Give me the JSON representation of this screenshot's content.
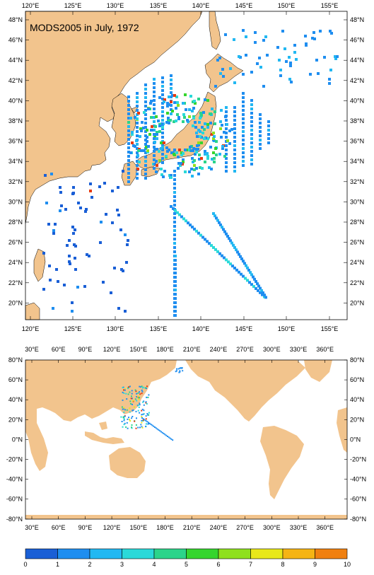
{
  "top_map": {
    "title": "MODS2005 in July, 1972",
    "x_ticks": [
      "120°E",
      "125°E",
      "130°E",
      "135°E",
      "140°E",
      "145°E",
      "150°E",
      "155°E"
    ],
    "y_ticks": [
      "48°N",
      "46°N",
      "44°N",
      "42°N",
      "40°N",
      "38°N",
      "36°N",
      "34°N",
      "32°N",
      "30°N",
      "28°N",
      "26°N",
      "24°N",
      "22°N",
      "20°N"
    ],
    "lon_range": [
      119.5,
      157.5
    ],
    "lat_range": [
      18.7,
      49.8
    ]
  },
  "bottom_map": {
    "x_ticks": [
      "30°E",
      "60°E",
      "90°E",
      "120°E",
      "150°E",
      "180°E",
      "210°E",
      "240°E",
      "270°E",
      "300°E",
      "330°E",
      "360°E"
    ],
    "y_ticks": [
      "80°N",
      "60°N",
      "40°N",
      "20°N",
      "0°N",
      "-20°N",
      "-40°N",
      "-60°N",
      "-80°N"
    ],
    "lon_range": [
      20,
      375
    ],
    "lat_range": [
      -80,
      80
    ]
  },
  "colorbar": {
    "ticks": [
      "0",
      "1",
      "2",
      "3",
      "4",
      "5",
      "6",
      "7",
      "8",
      "9",
      "10"
    ],
    "colors": [
      "#1a5fd6",
      "#1f8ef0",
      "#22b8f2",
      "#2ad9d9",
      "#2bd48a",
      "#35d52e",
      "#8fe01e",
      "#e8e81a",
      "#f5b414",
      "#f08010",
      "#e83a10"
    ]
  },
  "colors": {
    "land": "#f2c48d",
    "ocean": "#ffffff"
  }
}
